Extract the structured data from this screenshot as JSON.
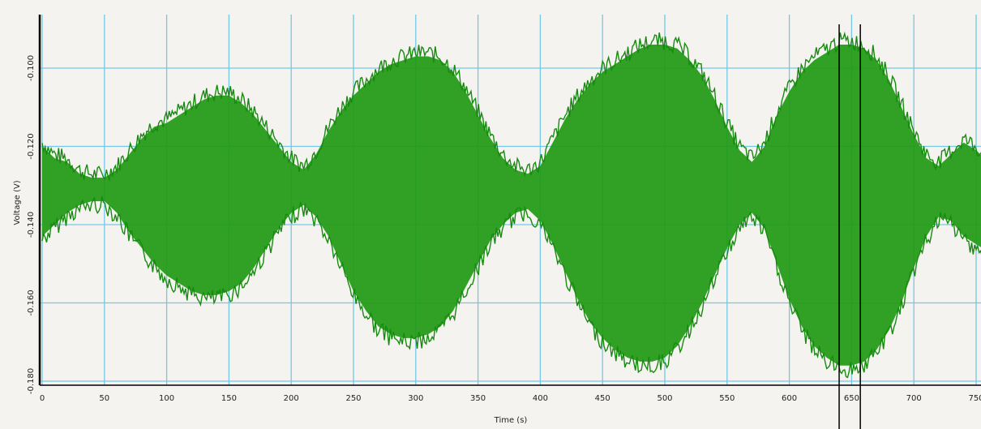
{
  "chart_data": {
    "type": "line",
    "title": "",
    "xlabel": "Time (s)",
    "ylabel": "Voltage (V)",
    "xlim": [
      0,
      760
    ],
    "ylim": [
      -0.182,
      -0.087
    ],
    "x_ticks": [
      0,
      50,
      100,
      150,
      200,
      250,
      300,
      350,
      400,
      450,
      500,
      550,
      600,
      650,
      700,
      750
    ],
    "x_tick_labels": [
      "0",
      "50",
      "100",
      "150",
      "200",
      "250",
      "300",
      "350",
      "400",
      "450",
      "500",
      "550",
      "600",
      "650",
      "700",
      "750"
    ],
    "y_ticks": [
      -0.1,
      -0.12,
      -0.14,
      -0.16,
      -0.18
    ],
    "y_tick_labels": [
      "-0.100",
      "-0.120",
      "-0.140",
      "-0.160",
      "-0.180"
    ],
    "grid": true,
    "legend": "none",
    "series": [
      {
        "color": "#1f9a14",
        "x": [
          0,
          10,
          20,
          30,
          40,
          50,
          60,
          70,
          80,
          90,
          100,
          110,
          120,
          130,
          140,
          150,
          160,
          170,
          180,
          190,
          200,
          210,
          220,
          230,
          240,
          250,
          260,
          270,
          280,
          290,
          300,
          310,
          320,
          330,
          340,
          350,
          360,
          370,
          380,
          390,
          400,
          410,
          420,
          430,
          440,
          450,
          460,
          470,
          480,
          490,
          500,
          510,
          520,
          530,
          540,
          550,
          560,
          570,
          580,
          590,
          600,
          610,
          620,
          630,
          640,
          650,
          660,
          670,
          680,
          690,
          700,
          710,
          720,
          730,
          740,
          750,
          760
        ],
        "upper": [
          -0.12,
          -0.123,
          -0.124,
          -0.127,
          -0.128,
          -0.128,
          -0.126,
          -0.122,
          -0.118,
          -0.115,
          -0.114,
          -0.112,
          -0.11,
          -0.108,
          -0.107,
          -0.107,
          -0.109,
          -0.112,
          -0.116,
          -0.12,
          -0.124,
          -0.126,
          -0.122,
          -0.116,
          -0.111,
          -0.107,
          -0.104,
          -0.101,
          -0.099,
          -0.098,
          -0.097,
          -0.097,
          -0.098,
          -0.101,
          -0.106,
          -0.112,
          -0.118,
          -0.123,
          -0.126,
          -0.127,
          -0.125,
          -0.119,
          -0.113,
          -0.108,
          -0.104,
          -0.101,
          -0.099,
          -0.097,
          -0.095,
          -0.094,
          -0.094,
          -0.095,
          -0.098,
          -0.102,
          -0.108,
          -0.115,
          -0.121,
          -0.124,
          -0.12,
          -0.112,
          -0.106,
          -0.101,
          -0.098,
          -0.096,
          -0.094,
          -0.094,
          -0.095,
          -0.098,
          -0.103,
          -0.11,
          -0.117,
          -0.123,
          -0.125,
          -0.122,
          -0.119,
          -0.121,
          -0.124
        ],
        "lower": [
          -0.143,
          -0.14,
          -0.137,
          -0.135,
          -0.134,
          -0.134,
          -0.137,
          -0.142,
          -0.146,
          -0.15,
          -0.153,
          -0.155,
          -0.157,
          -0.158,
          -0.158,
          -0.157,
          -0.155,
          -0.151,
          -0.146,
          -0.141,
          -0.137,
          -0.135,
          -0.138,
          -0.143,
          -0.15,
          -0.157,
          -0.162,
          -0.166,
          -0.168,
          -0.169,
          -0.169,
          -0.168,
          -0.166,
          -0.162,
          -0.156,
          -0.15,
          -0.144,
          -0.14,
          -0.137,
          -0.136,
          -0.139,
          -0.145,
          -0.152,
          -0.159,
          -0.165,
          -0.169,
          -0.172,
          -0.174,
          -0.175,
          -0.175,
          -0.174,
          -0.171,
          -0.166,
          -0.16,
          -0.153,
          -0.146,
          -0.14,
          -0.137,
          -0.141,
          -0.15,
          -0.159,
          -0.166,
          -0.171,
          -0.174,
          -0.176,
          -0.176,
          -0.175,
          -0.172,
          -0.167,
          -0.16,
          -0.151,
          -0.143,
          -0.138,
          -0.139,
          -0.143,
          -0.145,
          -0.147
        ]
      }
    ],
    "cursors_x": [
      640,
      657
    ]
  }
}
